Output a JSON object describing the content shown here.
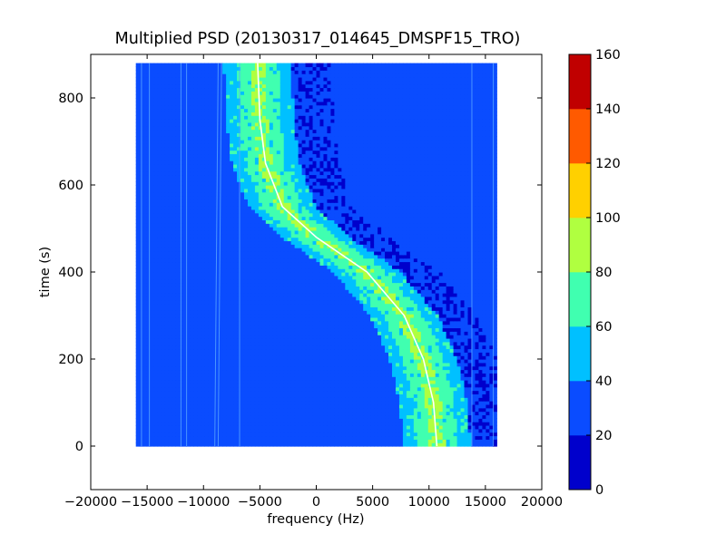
{
  "chart_data": {
    "type": "heatmap",
    "title": "Multiplied PSD (20130317_014645_DMSPF15_TRO)",
    "xlabel": "frequency (Hz)",
    "ylabel": "time (s)",
    "xlim": [
      -20000,
      20000
    ],
    "ylim": [
      -100,
      900
    ],
    "x_ticks": [
      -20000,
      -15000,
      -10000,
      -5000,
      0,
      5000,
      10000,
      15000,
      20000
    ],
    "y_ticks": [
      0,
      200,
      400,
      600,
      800
    ],
    "grid": false,
    "data_extent": {
      "freq_min": -16000,
      "freq_max": 16000,
      "time_min": 0,
      "time_max": 880
    },
    "colorbar": {
      "ticks": [
        0,
        20,
        40,
        60,
        80,
        100,
        120,
        140,
        160
      ],
      "levels": [
        {
          "min": 0,
          "max": 20,
          "color": "#0000cc"
        },
        {
          "min": 20,
          "max": 40,
          "color": "#0a4cff"
        },
        {
          "min": 40,
          "max": 60,
          "color": "#00c0ff"
        },
        {
          "min": 60,
          "max": 80,
          "color": "#40ffb0"
        },
        {
          "min": 80,
          "max": 100,
          "color": "#b0ff40"
        },
        {
          "min": 100,
          "max": 120,
          "color": "#ffd000"
        },
        {
          "min": 120,
          "max": 140,
          "color": "#ff5a00"
        },
        {
          "min": 140,
          "max": 160,
          "color": "#c00000"
        }
      ]
    },
    "doppler_trace": {
      "points": [
        [
          10700,
          0
        ],
        [
          10400,
          100
        ],
        [
          9500,
          200
        ],
        [
          7800,
          300
        ],
        [
          4500,
          400
        ],
        [
          0,
          480
        ],
        [
          -3000,
          550
        ],
        [
          -4500,
          650
        ],
        [
          -5000,
          750
        ],
        [
          -5200,
          880
        ]
      ]
    },
    "vertical_lines_hz": [
      -15500,
      -14800,
      -12000,
      -11500,
      -9000,
      -8700,
      -6800,
      13800,
      15700
    ]
  }
}
